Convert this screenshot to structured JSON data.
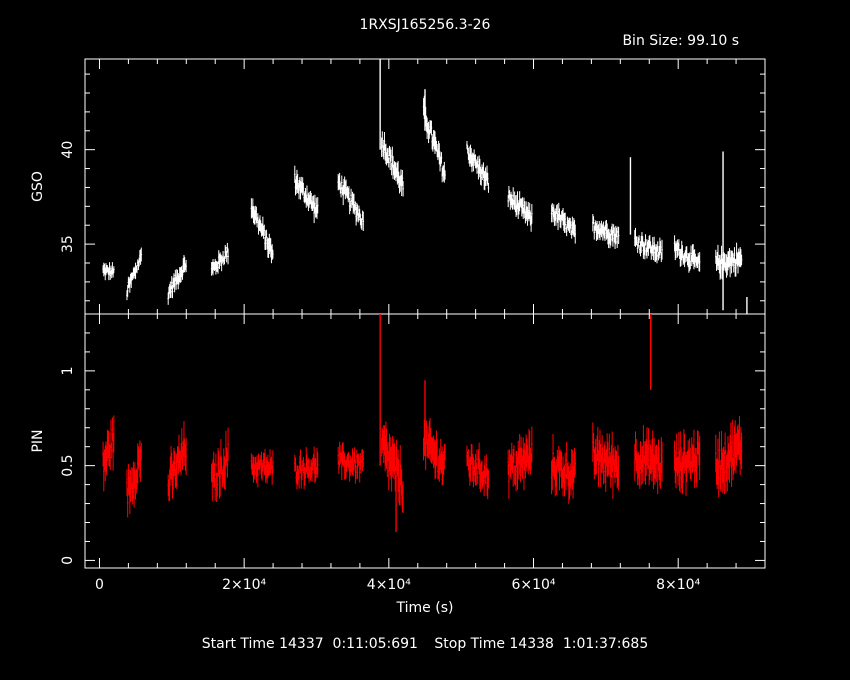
{
  "chart_data": {
    "type": "line",
    "title": "1RXSJ165256.3-26",
    "bin_size_label": "Bin Size: 99.10 s",
    "xlabel": "Time (s)",
    "x_range": [
      -2000,
      92000
    ],
    "x_ticks": [
      {
        "value": 0,
        "label": "0"
      },
      {
        "value": 20000,
        "label": "2×10⁴"
      },
      {
        "value": 40000,
        "label": "4×10⁴"
      },
      {
        "value": 60000,
        "label": "6×10⁴"
      },
      {
        "value": 80000,
        "label": "8×10⁴"
      }
    ],
    "grid": false,
    "colors": {
      "background": "#000000",
      "axes": "#ffffff",
      "gso": "#ffffff",
      "pin": "#ff0000"
    },
    "panels": [
      {
        "name": "gso",
        "ylabel": "GSO",
        "ylim": [
          31.3,
          44.8
        ],
        "yticks": [
          {
            "value": 35,
            "label": "35"
          },
          {
            "value": 40,
            "label": "40"
          }
        ],
        "segments": [
          {
            "start": 500,
            "end": 2000,
            "y0": 33.6,
            "y1": 33.5,
            "noise": 0.4
          },
          {
            "start": 3800,
            "end": 5800,
            "y0": 32.5,
            "y1": 34.4,
            "noise": 0.5
          },
          {
            "start": 9500,
            "end": 12000,
            "y0": 32.4,
            "y1": 34.0,
            "noise": 0.5
          },
          {
            "start": 15500,
            "end": 17800,
            "y0": 33.6,
            "y1": 34.6,
            "noise": 0.5
          },
          {
            "start": 21000,
            "end": 24000,
            "y0": 37.0,
            "y1": 34.4,
            "noise": 0.6
          },
          {
            "start": 27000,
            "end": 30200,
            "y0": 38.4,
            "y1": 36.7,
            "noise": 0.6
          },
          {
            "start": 33000,
            "end": 36500,
            "y0": 38.3,
            "y1": 36.2,
            "noise": 0.6
          },
          {
            "start": 39000,
            "end": 42000,
            "y0": 40.5,
            "y1": 38.0,
            "noise": 0.7
          },
          {
            "start": 44800,
            "end": 47800,
            "y0": 42.0,
            "y1": 38.6,
            "noise": 0.7
          },
          {
            "start": 50800,
            "end": 53800,
            "y0": 40.0,
            "y1": 38.2,
            "noise": 0.6
          },
          {
            "start": 56500,
            "end": 59800,
            "y0": 37.5,
            "y1": 36.3,
            "noise": 0.6
          },
          {
            "start": 62500,
            "end": 65800,
            "y0": 36.8,
            "y1": 35.5,
            "noise": 0.6
          },
          {
            "start": 68200,
            "end": 71800,
            "y0": 36.0,
            "y1": 35.4,
            "noise": 0.6
          },
          {
            "start": 74000,
            "end": 77800,
            "y0": 35.2,
            "y1": 34.5,
            "noise": 0.6
          },
          {
            "start": 79500,
            "end": 83000,
            "y0": 34.8,
            "y1": 33.9,
            "noise": 0.6
          },
          {
            "start": 85200,
            "end": 88800,
            "y0": 34.0,
            "y1": 34.2,
            "noise": 0.7
          }
        ],
        "spikes": [
          {
            "x": 38800,
            "lo": 40.0,
            "hi": 44.8
          },
          {
            "x": 45000,
            "lo": 41.0,
            "hi": 43.2
          },
          {
            "x": 73400,
            "lo": 35.5,
            "hi": 39.6
          },
          {
            "x": 86200,
            "lo": 31.5,
            "hi": 39.9
          },
          {
            "x": 89500,
            "lo": 31.3,
            "hi": 32.2
          }
        ]
      },
      {
        "name": "pin",
        "ylabel": "PIN",
        "ylim": [
          -0.04,
          1.3
        ],
        "yticks": [
          {
            "value": 0,
            "label": "0"
          },
          {
            "value": 0.5,
            "label": "0.5"
          },
          {
            "value": 1,
            "label": "1"
          }
        ],
        "segments": [
          {
            "start": 500,
            "end": 2000,
            "y0": 0.5,
            "y1": 0.65,
            "noise": 0.12
          },
          {
            "start": 3800,
            "end": 5800,
            "y0": 0.35,
            "y1": 0.55,
            "noise": 0.12
          },
          {
            "start": 9500,
            "end": 12000,
            "y0": 0.4,
            "y1": 0.6,
            "noise": 0.12
          },
          {
            "start": 15500,
            "end": 17800,
            "y0": 0.4,
            "y1": 0.55,
            "noise": 0.12
          },
          {
            "start": 21000,
            "end": 24000,
            "y0": 0.5,
            "y1": 0.48,
            "noise": 0.08
          },
          {
            "start": 27000,
            "end": 30200,
            "y0": 0.48,
            "y1": 0.5,
            "noise": 0.08
          },
          {
            "start": 33000,
            "end": 36500,
            "y0": 0.52,
            "y1": 0.5,
            "noise": 0.08
          },
          {
            "start": 39000,
            "end": 42000,
            "y0": 0.6,
            "y1": 0.4,
            "noise": 0.14
          },
          {
            "start": 44800,
            "end": 47800,
            "y0": 0.62,
            "y1": 0.5,
            "noise": 0.12
          },
          {
            "start": 50800,
            "end": 53800,
            "y0": 0.52,
            "y1": 0.45,
            "noise": 0.1
          },
          {
            "start": 56500,
            "end": 59800,
            "y0": 0.48,
            "y1": 0.55,
            "noise": 0.12
          },
          {
            "start": 62500,
            "end": 65800,
            "y0": 0.5,
            "y1": 0.45,
            "noise": 0.12
          },
          {
            "start": 68200,
            "end": 71800,
            "y0": 0.55,
            "y1": 0.5,
            "noise": 0.13
          },
          {
            "start": 74000,
            "end": 77800,
            "y0": 0.55,
            "y1": 0.5,
            "noise": 0.13
          },
          {
            "start": 79500,
            "end": 83000,
            "y0": 0.5,
            "y1": 0.55,
            "noise": 0.13
          },
          {
            "start": 85200,
            "end": 88800,
            "y0": 0.5,
            "y1": 0.6,
            "noise": 0.14
          }
        ],
        "spikes": [
          {
            "x": 38800,
            "lo": 0.5,
            "hi": 1.3
          },
          {
            "x": 76200,
            "lo": 0.9,
            "hi": 1.3
          },
          {
            "x": 45000,
            "lo": 0.55,
            "hi": 0.95
          },
          {
            "x": 41000,
            "lo": 0.15,
            "hi": 0.45
          }
        ]
      }
    ]
  },
  "footer": {
    "start_label": "Start Time 14337  0:11:05:691",
    "stop_label": "Stop Time 14338  1:01:37:685"
  }
}
